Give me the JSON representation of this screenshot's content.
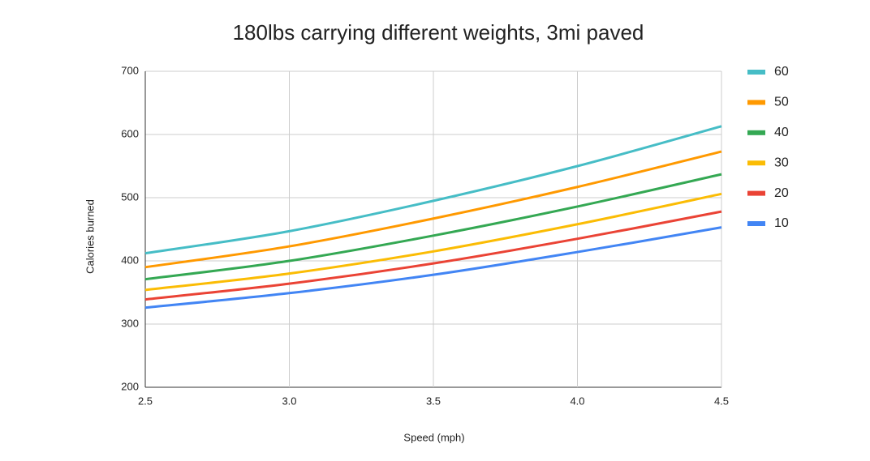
{
  "chart_data": {
    "type": "line",
    "title": "180lbs carrying different weights, 3mi paved",
    "x_label": "Speed (mph)",
    "y_label": "Calories burned",
    "x": [
      2.5,
      3.0,
      3.5,
      4.0,
      4.5
    ],
    "series": [
      {
        "name": "60",
        "color": "#46bdc6",
        "values": [
          412,
          447,
          495,
          550,
          613
        ]
      },
      {
        "name": "50",
        "color": "#ff9900",
        "values": [
          390,
          423,
          467,
          517,
          573
        ]
      },
      {
        "name": "40",
        "color": "#34a853",
        "values": [
          371,
          400,
          440,
          486,
          537
        ]
      },
      {
        "name": "30",
        "color": "#fbbc04",
        "values": [
          354,
          380,
          415,
          458,
          506
        ]
      },
      {
        "name": "20",
        "color": "#ea4335",
        "values": [
          339,
          364,
          396,
          435,
          478
        ]
      },
      {
        "name": "10",
        "color": "#4285f4",
        "values": [
          326,
          349,
          378,
          414,
          453
        ]
      }
    ],
    "xlim": [
      2.5,
      4.5
    ],
    "xticks": [
      2.5,
      {
        "value": 3,
        "label": "3.0"
      },
      3.5,
      {
        "value": 4,
        "label": "4.0"
      },
      4.5
    ],
    "ylim": [
      200,
      700
    ],
    "yticks": [
      200,
      300,
      400,
      500,
      600,
      700
    ],
    "grid": true,
    "legend": "right"
  }
}
